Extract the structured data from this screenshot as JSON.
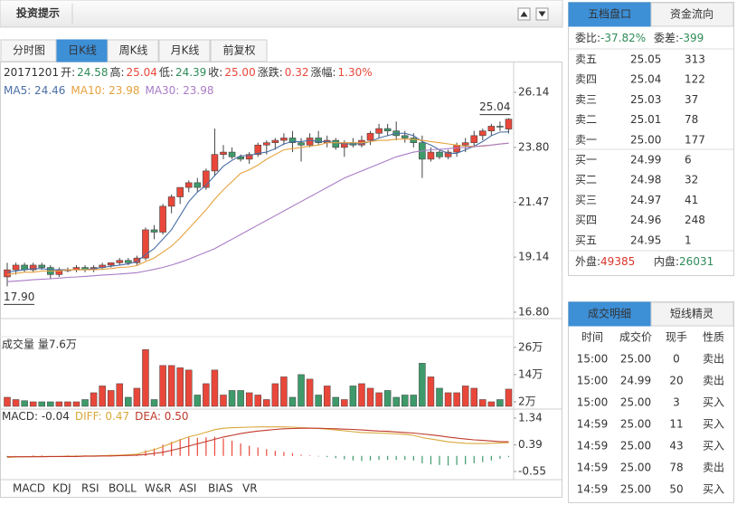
{
  "header": {
    "title": "投资提示"
  },
  "tabs": [
    "分时图",
    "日K线",
    "周K线",
    "月K线",
    "前复权"
  ],
  "chart_data": [
    {
      "type": "candlestick",
      "date": "20171201",
      "info": [
        {
          "label": "开:",
          "value": "24.58",
          "color": "#2e8b57"
        },
        {
          "label": "高:",
          "value": "25.04",
          "color": "#e8473a"
        },
        {
          "label": "低:",
          "value": "24.39",
          "color": "#2e8b57"
        },
        {
          "label": "收:",
          "value": "25.00",
          "color": "#e8473a"
        },
        {
          "label": "涨跌:",
          "value": "0.32",
          "color": "#e8473a"
        },
        {
          "label": "涨幅:",
          "value": "1.30%",
          "color": "#e8473a"
        }
      ],
      "up_color": "#e8473a",
      "down_color": "#3e9a6a",
      "open": [
        18.3,
        18.6,
        18.8,
        18.6,
        18.8,
        18.7,
        18.4,
        18.6,
        18.6,
        18.7,
        18.6,
        18.7,
        18.8,
        18.9,
        19.0,
        18.9,
        19.1,
        20.3,
        20.2,
        21.3,
        21.7,
        22.1,
        22.3,
        22.1,
        22.8,
        23.5,
        23.6,
        23.4,
        23.3,
        23.5,
        23.9,
        24.0,
        24.1,
        24.2,
        24.0,
        23.9,
        24.2,
        24.0,
        24.1,
        23.8,
        24.0,
        23.9,
        24.1,
        24.4,
        24.6,
        24.5,
        24.3,
        24.2,
        24.0,
        23.3,
        23.6,
        23.4,
        23.6,
        23.9,
        24.0,
        24.3,
        24.5,
        24.7,
        24.58
      ],
      "high": [
        18.9,
        18.9,
        18.9,
        18.9,
        18.9,
        18.8,
        18.7,
        18.7,
        18.8,
        18.8,
        18.8,
        18.9,
        18.9,
        19.1,
        19.1,
        19.2,
        20.4,
        20.5,
        21.4,
        21.8,
        22.1,
        22.4,
        22.5,
        22.9,
        24.6,
        23.9,
        23.8,
        23.5,
        23.6,
        24.0,
        24.1,
        24.2,
        24.4,
        24.5,
        24.2,
        24.4,
        24.5,
        24.3,
        24.2,
        24.1,
        24.2,
        24.3,
        24.5,
        24.8,
        24.8,
        24.9,
        24.5,
        24.4,
        24.3,
        23.8,
        23.7,
        23.7,
        24.0,
        24.2,
        24.5,
        24.6,
        24.8,
        24.9,
        25.04
      ],
      "low": [
        17.9,
        18.4,
        18.5,
        18.5,
        18.6,
        18.2,
        18.3,
        18.5,
        18.5,
        18.5,
        18.5,
        18.6,
        18.7,
        18.8,
        18.8,
        18.8,
        19.0,
        19.9,
        20.1,
        21.0,
        21.4,
        21.9,
        21.9,
        22.0,
        22.6,
        23.3,
        23.3,
        23.2,
        23.1,
        23.4,
        23.5,
        23.7,
        23.9,
        23.6,
        23.2,
        23.8,
        23.9,
        23.8,
        23.7,
        23.4,
        23.8,
        23.8,
        23.9,
        24.2,
        24.3,
        24.1,
        24.0,
        23.8,
        22.5,
        23.2,
        23.3,
        23.3,
        23.4,
        23.6,
        23.8,
        24.1,
        24.3,
        24.5,
        24.39
      ],
      "close": [
        18.6,
        18.8,
        18.6,
        18.8,
        18.7,
        18.4,
        18.6,
        18.6,
        18.7,
        18.6,
        18.7,
        18.8,
        18.9,
        19.0,
        18.9,
        19.1,
        20.3,
        20.2,
        21.3,
        21.7,
        22.1,
        22.3,
        22.1,
        22.8,
        23.5,
        23.6,
        23.4,
        23.3,
        23.5,
        23.9,
        24.0,
        24.1,
        24.2,
        24.0,
        23.9,
        24.2,
        24.0,
        24.1,
        23.8,
        24.0,
        23.9,
        24.1,
        24.4,
        24.6,
        24.5,
        24.3,
        24.2,
        24.0,
        23.3,
        23.6,
        23.4,
        23.6,
        23.9,
        24.0,
        24.3,
        24.5,
        24.7,
        24.68,
        25.0
      ],
      "series": [
        {
          "name": "MA5: 24.46",
          "color": "#4a6fa5",
          "values": [
            18.5,
            18.55,
            18.6,
            18.65,
            18.65,
            18.6,
            18.6,
            18.6,
            18.6,
            18.6,
            18.65,
            18.7,
            18.75,
            18.8,
            18.85,
            18.95,
            19.25,
            19.5,
            19.9,
            20.3,
            20.9,
            21.5,
            21.9,
            22.2,
            22.6,
            23.0,
            23.25,
            23.45,
            23.45,
            23.55,
            23.6,
            23.75,
            23.95,
            24.05,
            24.05,
            24.1,
            24.05,
            24.05,
            24.0,
            23.95,
            23.95,
            23.95,
            24.05,
            24.2,
            24.3,
            24.4,
            24.4,
            24.3,
            24.05,
            23.9,
            23.7,
            23.55,
            23.55,
            23.7,
            23.85,
            24.05,
            24.3,
            24.45,
            24.46
          ]
        },
        {
          "name": "MA10: 23.98",
          "color": "#e6a23c",
          "values": [
            18.4,
            18.45,
            18.5,
            18.5,
            18.55,
            18.55,
            18.55,
            18.6,
            18.6,
            18.6,
            18.6,
            18.62,
            18.65,
            18.7,
            18.72,
            18.78,
            18.95,
            19.1,
            19.35,
            19.6,
            19.95,
            20.35,
            20.75,
            21.15,
            21.6,
            22.0,
            22.35,
            22.7,
            22.85,
            23.05,
            23.3,
            23.5,
            23.7,
            23.75,
            23.8,
            23.85,
            23.9,
            24.0,
            24.0,
            24.0,
            24.0,
            24.0,
            24.05,
            24.1,
            24.1,
            24.15,
            24.15,
            24.15,
            24.1,
            24.05,
            24.0,
            23.95,
            23.9,
            23.85,
            23.85,
            23.85,
            23.9,
            23.95,
            23.98
          ]
        },
        {
          "name": "MA30: 23.98",
          "color": "#a97cc6",
          "values": [
            18.1,
            18.12,
            18.15,
            18.18,
            18.2,
            18.22,
            18.25,
            18.28,
            18.3,
            18.32,
            18.35,
            18.38,
            18.4,
            18.42,
            18.45,
            18.48,
            18.55,
            18.62,
            18.7,
            18.8,
            18.92,
            19.05,
            19.2,
            19.35,
            19.5,
            19.7,
            19.9,
            20.1,
            20.3,
            20.5,
            20.7,
            20.9,
            21.1,
            21.3,
            21.5,
            21.7,
            21.9,
            22.1,
            22.3,
            22.5,
            22.65,
            22.8,
            22.95,
            23.1,
            23.25,
            23.4,
            23.5,
            23.6,
            23.65,
            23.7,
            23.72,
            23.75,
            23.78,
            23.8,
            23.83,
            23.87,
            23.9,
            23.94,
            23.98
          ]
        }
      ],
      "annotations": [
        {
          "value": 25.04,
          "label": "25.04"
        },
        {
          "value": 17.9,
          "label": "17.90"
        }
      ],
      "ylim": [
        16.53,
        27.37
      ],
      "yticks": [
        26.14,
        {
          "value": 23.8,
          "label": "23.80"
        },
        21.47,
        19.14,
        {
          "value": 16.8,
          "label": "16.80"
        }
      ]
    },
    {
      "type": "bar",
      "title": "成交量 量7.6万",
      "values": [
        4,
        3,
        2.5,
        2,
        2,
        2,
        2,
        2,
        2,
        3,
        6,
        9,
        7,
        10,
        4,
        8,
        25,
        3,
        18,
        18,
        17,
        16,
        5,
        10,
        16,
        5,
        7,
        7,
        6,
        5,
        3,
        10,
        13,
        4,
        14,
        12,
        5,
        9,
        4,
        3,
        9,
        10,
        8,
        6,
        7,
        4,
        5,
        5,
        19,
        13,
        8,
        6,
        6,
        9,
        8,
        3,
        2,
        3,
        7.6
      ],
      "ylim": [
        0,
        30.7
      ],
      "yticks": [
        {
          "value": 26,
          "label": "26万"
        },
        {
          "value": 14,
          "label": "14万"
        },
        {
          "value": 2,
          "label": "2万"
        }
      ]
    },
    {
      "type": "macd",
      "series": [
        {
          "name": "MACD: -0.04",
          "color": "#333333",
          "up_color": "#e8473a",
          "down_color": "#3e9a6a",
          "values": [
            -0.04,
            -0.02,
            0,
            0.02,
            0.02,
            0,
            0,
            0.02,
            0.02,
            0.02,
            0.02,
            0.02,
            0.04,
            0.04,
            0.04,
            0.06,
            0.2,
            0.26,
            0.4,
            0.5,
            0.6,
            0.66,
            0.64,
            0.66,
            0.68,
            0.62,
            0.54,
            0.44,
            0.36,
            0.3,
            0.24,
            0.18,
            0.14,
            0.1,
            0.04,
            0.02,
            -0.02,
            -0.04,
            -0.08,
            -0.12,
            -0.16,
            -0.18,
            -0.16,
            -0.14,
            -0.14,
            -0.14,
            -0.14,
            -0.16,
            -0.26,
            -0.3,
            -0.32,
            -0.34,
            -0.32,
            -0.3,
            -0.26,
            -0.22,
            -0.16,
            -0.1,
            -0.04
          ]
        },
        {
          "name": "DIFF: 0.47",
          "color": "#d9a83a",
          "values": [
            -0.05,
            -0.04,
            -0.03,
            -0.02,
            -0.02,
            -0.02,
            -0.02,
            -0.01,
            -0.01,
            0,
            0,
            0.01,
            0.02,
            0.03,
            0.04,
            0.06,
            0.15,
            0.22,
            0.33,
            0.45,
            0.57,
            0.68,
            0.75,
            0.84,
            0.93,
            0.98,
            1.0,
            1.01,
            1.02,
            1.03,
            1.03,
            1.03,
            1.03,
            1.02,
            1.0,
            0.99,
            0.97,
            0.95,
            0.92,
            0.89,
            0.86,
            0.83,
            0.82,
            0.81,
            0.8,
            0.78,
            0.76,
            0.73,
            0.65,
            0.6,
            0.55,
            0.5,
            0.47,
            0.45,
            0.44,
            0.44,
            0.45,
            0.46,
            0.47
          ]
        },
        {
          "name": "DEA: 0.50",
          "color": "#c0392b",
          "values": [
            -0.03,
            -0.03,
            -0.03,
            -0.03,
            -0.03,
            -0.02,
            -0.02,
            -0.02,
            -0.02,
            -0.01,
            -0.01,
            0,
            0,
            0.01,
            0.02,
            0.03,
            0.05,
            0.09,
            0.13,
            0.2,
            0.27,
            0.35,
            0.43,
            0.51,
            0.59,
            0.67,
            0.73,
            0.79,
            0.84,
            0.88,
            0.91,
            0.94,
            0.96,
            0.97,
            0.98,
            0.98,
            0.98,
            0.97,
            0.96,
            0.95,
            0.94,
            0.92,
            0.9,
            0.88,
            0.87,
            0.85,
            0.83,
            0.81,
            0.78,
            0.75,
            0.71,
            0.67,
            0.63,
            0.6,
            0.57,
            0.55,
            0.53,
            0.51,
            0.5
          ]
        }
      ],
      "ylim": [
        -0.84,
        1.66
      ],
      "yticks": [
        1.34,
        0.39,
        -0.55
      ]
    }
  ],
  "indicator_tabs": [
    "MACD",
    "KDJ",
    "RSI",
    "BOLL",
    "W&R",
    "ASI",
    "BIAS",
    "VR"
  ],
  "order_book": {
    "tabs": [
      "五档盘口",
      "资金流向"
    ],
    "ratio": {
      "label": "委比:",
      "value": "-37.82%"
    },
    "diff": {
      "label": "委差:",
      "value": "-399"
    },
    "asks": [
      [
        "卖五",
        "25.05",
        "313"
      ],
      [
        "卖四",
        "25.04",
        "122"
      ],
      [
        "卖三",
        "25.03",
        "37"
      ],
      [
        "卖二",
        "25.01",
        "78"
      ],
      [
        "卖一",
        "25.00",
        "177"
      ]
    ],
    "bids": [
      [
        "买一",
        "24.99",
        "6"
      ],
      [
        "买二",
        "24.98",
        "32"
      ],
      [
        "买三",
        "24.97",
        "41"
      ],
      [
        "买四",
        "24.96",
        "248"
      ],
      [
        "买五",
        "24.95",
        "1"
      ]
    ],
    "outer": {
      "label": "外盘:",
      "value": "49385"
    },
    "inner": {
      "label": "内盘:",
      "value": "26031"
    }
  },
  "trades": {
    "tabs": [
      "成交明细",
      "短线精灵"
    ],
    "header": [
      "时间",
      "成交价",
      "现手",
      "性质"
    ],
    "rows": [
      [
        "15:00",
        "25.00",
        "0",
        "卖出"
      ],
      [
        "15:00",
        "24.99",
        "20",
        "卖出"
      ],
      [
        "15:00",
        "25.00",
        "3",
        "买入"
      ],
      [
        "14:59",
        "25.00",
        "11",
        "买入"
      ],
      [
        "14:59",
        "25.00",
        "43",
        "买入"
      ],
      [
        "14:59",
        "25.00",
        "78",
        "卖出"
      ],
      [
        "14:59",
        "25.00",
        "50",
        "买入"
      ]
    ]
  }
}
